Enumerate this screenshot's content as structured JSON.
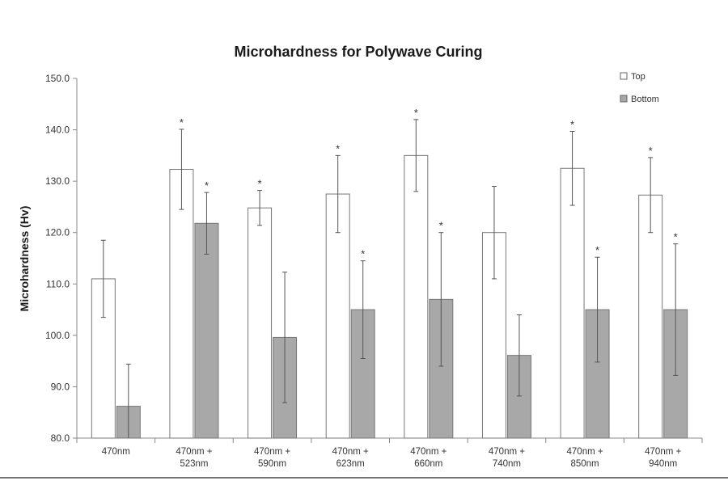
{
  "chart_data": {
    "type": "bar",
    "title": "Microhardness for Polywave Curing",
    "xlabel": "",
    "ylabel": "Microhardness (Hv)",
    "ylim": [
      80,
      150
    ],
    "yticks": [
      "80.0",
      "90.0",
      "100.0",
      "110.0",
      "120.0",
      "130.0",
      "140.0",
      "150.0"
    ],
    "categories": [
      [
        "470nm"
      ],
      [
        "470nm +",
        "523nm"
      ],
      [
        "470nm +",
        "590nm"
      ],
      [
        "470nm +",
        "623nm"
      ],
      [
        "470nm +",
        "660nm"
      ],
      [
        "470nm +",
        "740nm"
      ],
      [
        "470nm +",
        "850nm"
      ],
      [
        "470nm +",
        "940nm"
      ]
    ],
    "series": [
      {
        "name": "Top",
        "fill": "#ffffff",
        "values": [
          111.0,
          132.3,
          124.8,
          127.5,
          135.0,
          120.0,
          132.5,
          127.3
        ],
        "error": [
          7.5,
          7.8,
          3.4,
          7.5,
          7.0,
          9.0,
          7.2,
          7.3
        ],
        "significant": [
          false,
          true,
          true,
          true,
          true,
          false,
          true,
          true
        ]
      },
      {
        "name": "Bottom",
        "fill": "#a8a8a8",
        "values": [
          86.2,
          121.8,
          99.6,
          105.0,
          107.0,
          96.1,
          105.0,
          105.0
        ],
        "error": [
          8.2,
          6.0,
          12.7,
          9.5,
          13.0,
          7.9,
          10.2,
          12.8
        ],
        "significant": [
          false,
          true,
          false,
          true,
          true,
          false,
          true,
          true
        ]
      }
    ],
    "significance_marker": "*",
    "legend_position": "top-right"
  }
}
